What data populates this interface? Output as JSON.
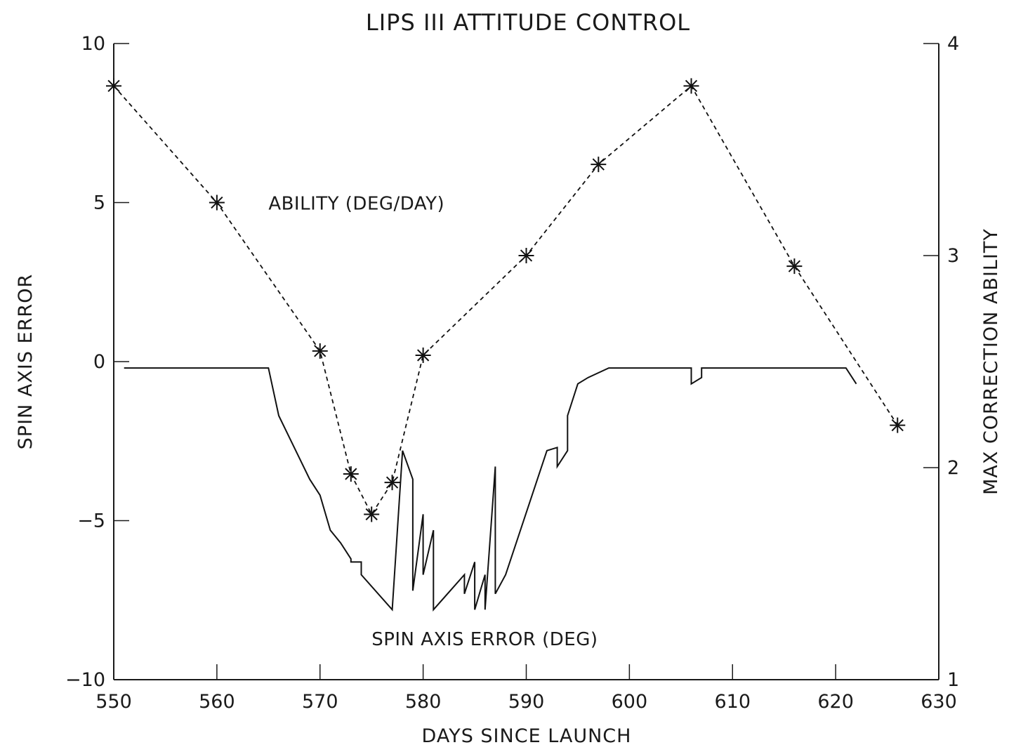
{
  "chart_data": {
    "type": "line",
    "title": "LIPS III ATTITUDE CONTROL",
    "xlabel": "DAYS SINCE LAUNCH",
    "ylabel": "SPIN AXIS ERROR",
    "y2label": "MAX CORRECTION ABILITY",
    "xlim": [
      550,
      630
    ],
    "ylim": [
      -10,
      10
    ],
    "y2lim": [
      1,
      4
    ],
    "x_ticks": [
      "550",
      "560",
      "570",
      "580",
      "590",
      "600",
      "610",
      "620",
      "630"
    ],
    "y_ticks": [
      "-10",
      "-5",
      "0",
      "5",
      "10"
    ],
    "y2_ticks": [
      "1",
      "2",
      "3",
      "4"
    ],
    "grid": false,
    "annotations": [
      {
        "text": "ABILITY (DEG/DAY)",
        "x": 565,
        "y": 5,
        "axis": "left"
      },
      {
        "text": "SPIN AXIS ERROR (DEG)",
        "x": 575,
        "y": -8.7,
        "axis": "left"
      }
    ],
    "series": [
      {
        "axis": "left",
        "style": "solid",
        "x": [
          551,
          565,
          566,
          569,
          570,
          571,
          572,
          573,
          573,
          574,
          574,
          577,
          578,
          579,
          579,
          580,
          580,
          581,
          581,
          584,
          584,
          585,
          585,
          586,
          586,
          587,
          587,
          588,
          592,
          593,
          593,
          594,
          594,
          595,
          596,
          598,
          606,
          606,
          607,
          607,
          621,
          622
        ],
        "y": [
          -0.2,
          -0.2,
          -1.7,
          -3.7,
          -4.2,
          -5.3,
          -5.7,
          -6.2,
          -6.3,
          -6.3,
          -6.7,
          -7.8,
          -2.8,
          -3.7,
          -7.2,
          -4.8,
          -6.7,
          -5.3,
          -7.8,
          -6.7,
          -7.3,
          -6.3,
          -7.8,
          -6.7,
          -7.8,
          -3.3,
          -7.3,
          -6.7,
          -2.8,
          -2.7,
          -3.3,
          -2.8,
          -1.7,
          -0.7,
          -0.5,
          -0.2,
          -0.2,
          -0.7,
          -0.5,
          -0.2,
          -0.2,
          -0.7
        ]
      },
      {
        "axis": "right",
        "style": "dashed",
        "markers": "asterisk",
        "x": [
          550,
          560,
          570,
          573,
          575,
          577,
          580,
          590,
          597,
          606,
          616,
          626
        ],
        "y": [
          3.8,
          3.25,
          2.55,
          1.97,
          1.78,
          1.93,
          2.53,
          3.0,
          3.43,
          3.8,
          2.95,
          2.2
        ]
      }
    ]
  }
}
